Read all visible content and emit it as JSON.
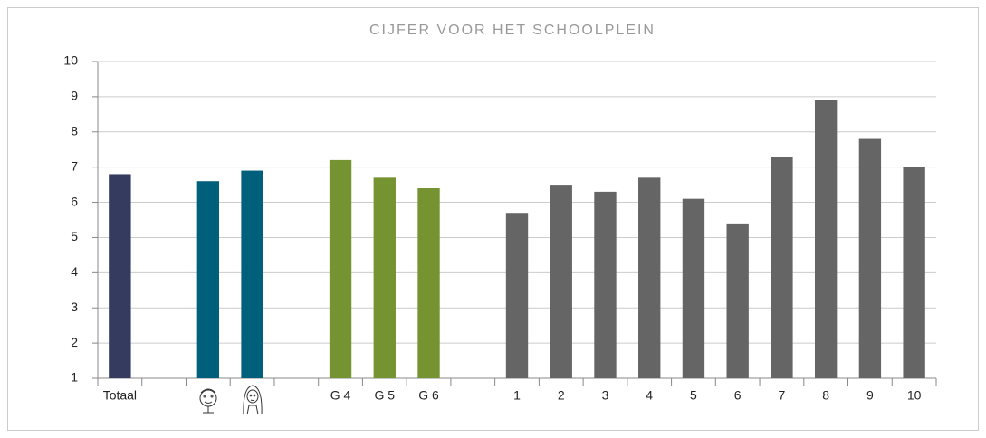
{
  "chart_data": {
    "type": "bar",
    "title": "CIJFER VOOR HET SCHOOLPLEIN",
    "categories": [
      "Totaal",
      null,
      null,
      null,
      null,
      "G 4",
      "G 5",
      "G 6",
      null,
      "1",
      "2",
      "3",
      "4",
      "5",
      "6",
      "7",
      "8",
      "9",
      "10"
    ],
    "values": [
      6.8,
      null,
      6.6,
      6.9,
      null,
      7.2,
      6.7,
      6.4,
      null,
      5.7,
      6.5,
      6.3,
      6.7,
      6.1,
      5.4,
      7.3,
      8.9,
      7.8,
      7.0
    ],
    "colors": [
      "#343b5e",
      null,
      "#005f7a",
      "#005f7a",
      null,
      "#759431",
      "#759431",
      "#759431",
      null,
      "#666566",
      "#666566",
      "#666566",
      "#666566",
      "#666566",
      "#666566",
      "#666566",
      "#666566",
      "#666566",
      "#666566"
    ],
    "ylim": [
      1,
      10
    ],
    "yticks": [
      1,
      2,
      3,
      4,
      5,
      6,
      7,
      8,
      9,
      10
    ],
    "grid": true
  }
}
